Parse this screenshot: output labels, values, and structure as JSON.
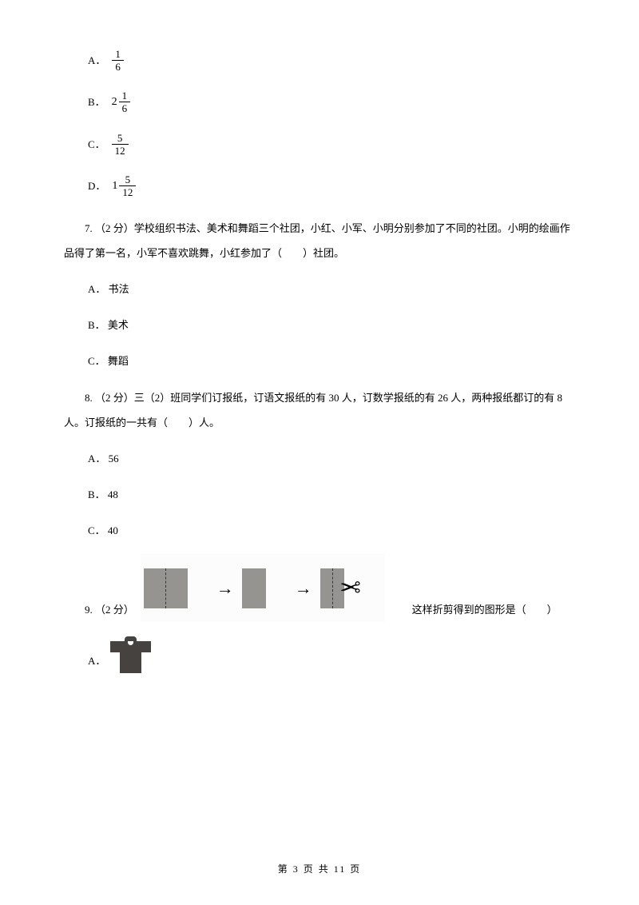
{
  "q6": {
    "options": {
      "a": {
        "label": "A．",
        "num": "1",
        "denom": "6"
      },
      "b": {
        "label": "B．",
        "whole": "2",
        "num": "1",
        "denom": "6"
      },
      "c": {
        "label": "C．",
        "num": "5",
        "denom": "12"
      },
      "d": {
        "label": "D．",
        "whole": "1",
        "num": "5",
        "denom": "12"
      }
    }
  },
  "q7": {
    "text": "7. （2 分）学校组织书法、美术和舞蹈三个社团，小红、小军、小明分别参加了不同的社团。小明的绘画作品得了第一名，小军不喜欢跳舞，小红参加了（　　）社团。",
    "options": {
      "a": "A． 书法",
      "b": "B． 美术",
      "c": "C． 舞蹈"
    }
  },
  "q8": {
    "text": "8. （2 分）三（2）班同学们订报纸，订语文报纸的有 30 人，订数学报纸的有 26 人，两种报纸都订的有 8 人。订报纸的一共有（　　）人。",
    "options": {
      "a": "A． 56",
      "b": "B． 48",
      "c": "C． 40"
    }
  },
  "q9": {
    "prefix": "9. （2 分）",
    "suffix": "这样折剪得到的图形是（　　）",
    "optionA": "A．"
  },
  "footer": "第 3 页 共 11 页",
  "symbols": {
    "arrow": "→",
    "scissors": "✂"
  }
}
